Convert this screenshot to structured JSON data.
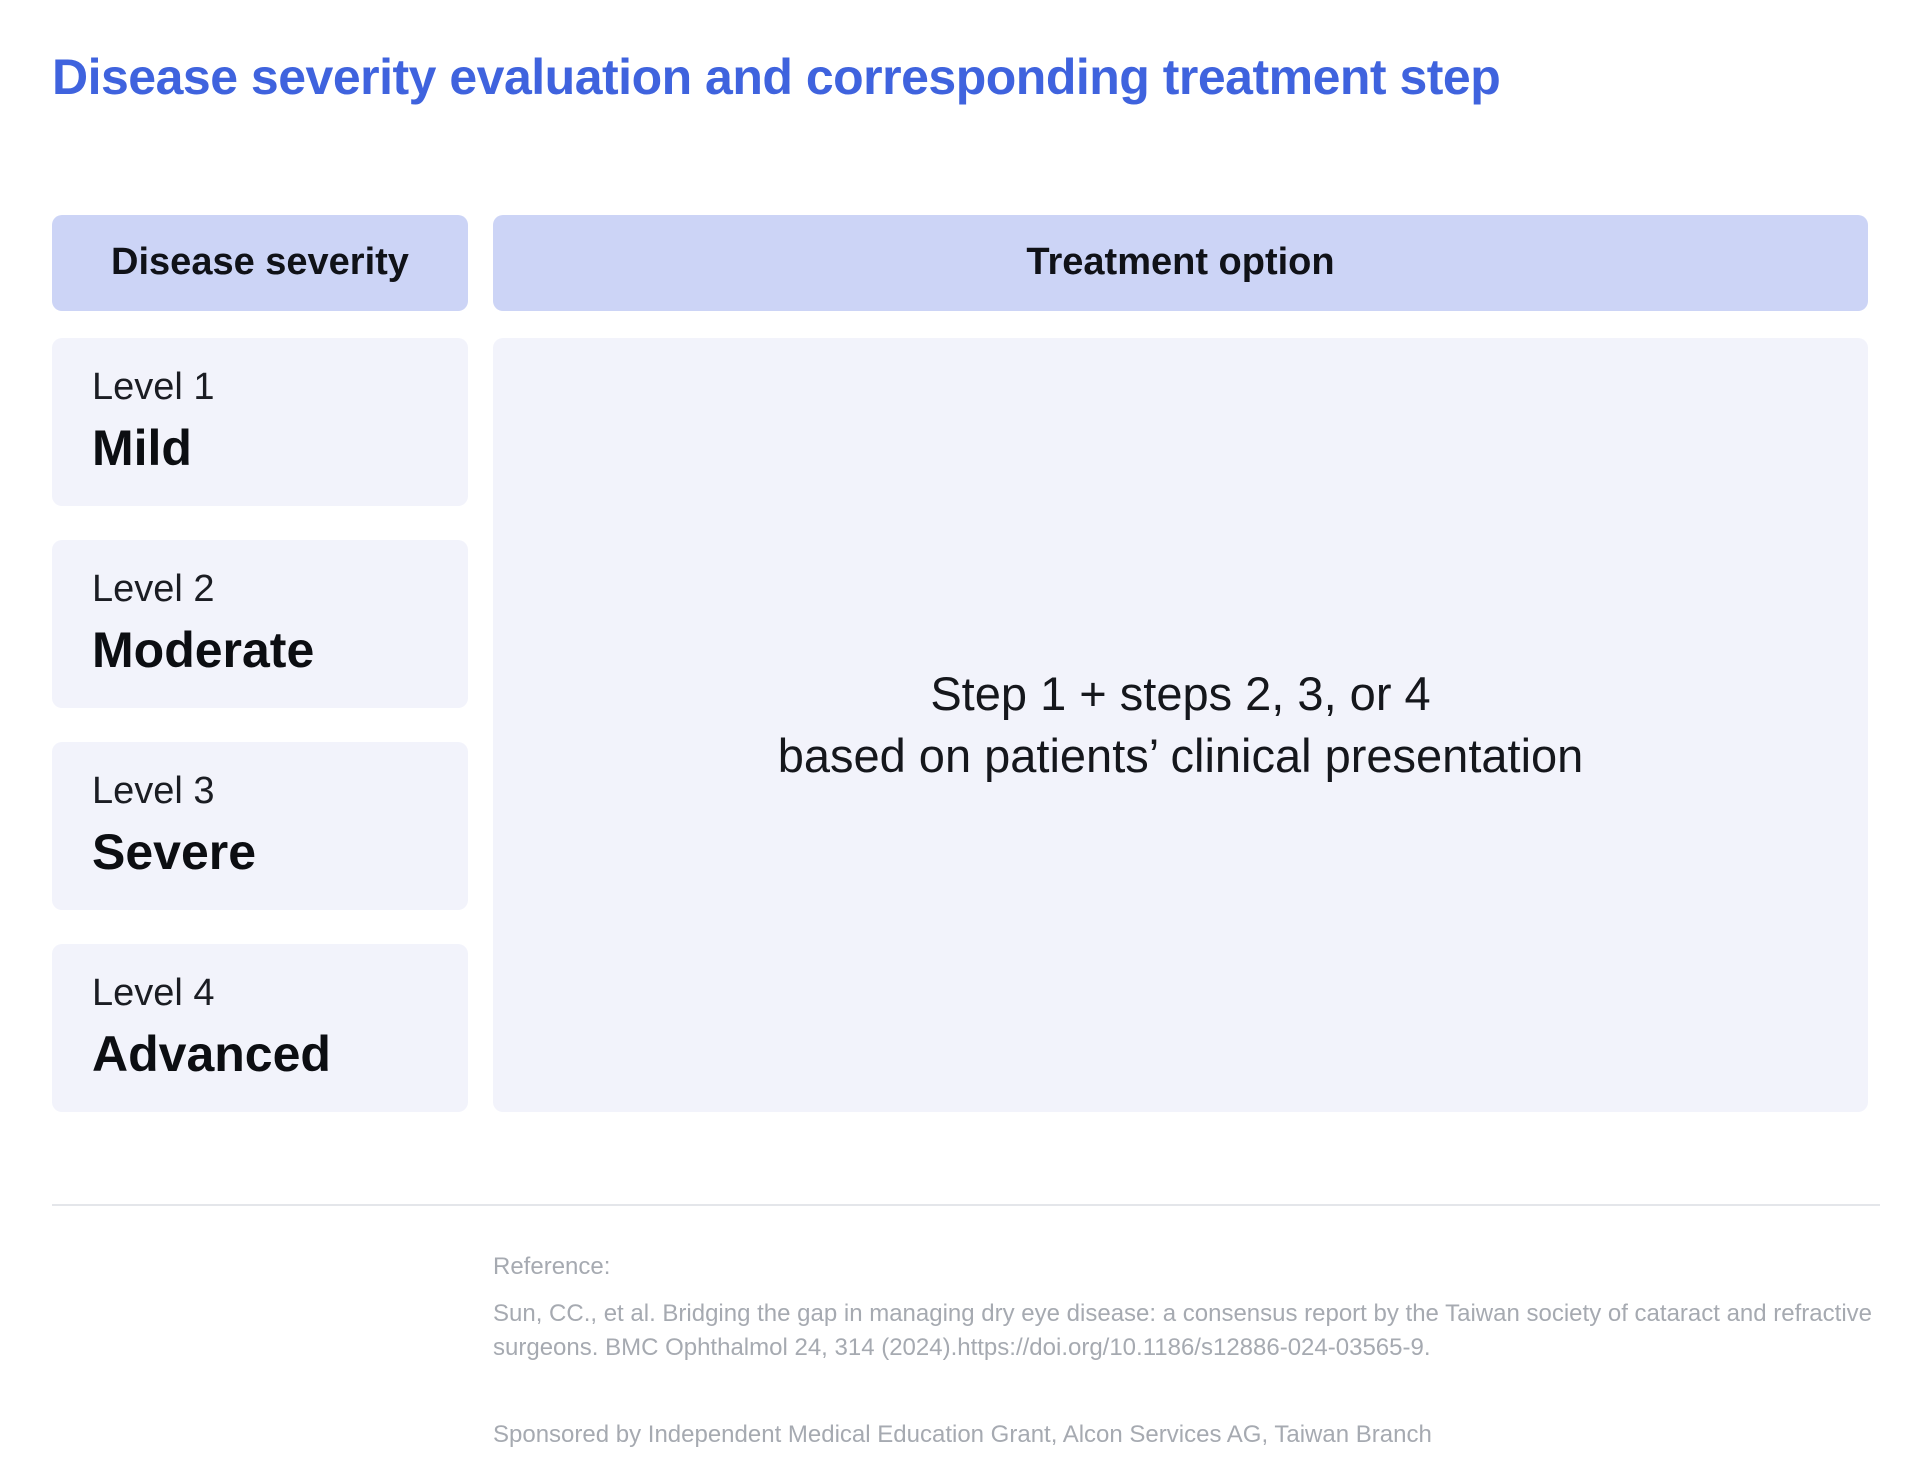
{
  "page": {
    "title": "Disease severity evaluation and corresponding treatment step"
  },
  "table": {
    "headers": {
      "severity": "Disease severity",
      "treatment": "Treatment option"
    },
    "severity_rows": [
      {
        "level": "Level 1",
        "name": "Mild"
      },
      {
        "level": "Level 2",
        "name": "Moderate"
      },
      {
        "level": "Level 3",
        "name": "Severe"
      },
      {
        "level": "Level 4",
        "name": "Advanced"
      }
    ],
    "treatment": {
      "line1": "Step 1 + steps 2, 3, or 4",
      "line2": "based on patients’ clinical presentation"
    }
  },
  "footer": {
    "reference_label": "Reference:",
    "reference_text": "Sun, CC., et al. Bridging the gap in managing dry eye disease: a consensus report by the Taiwan society of cataract and refractive surgeons. BMC Ophthalmol 24, 314 (2024).https://doi.org/10.1186/s12886-024-03565-9.",
    "sponsor_text": "Sponsored by Independent Medical Education Grant, Alcon Services AG, Taiwan Branch"
  },
  "colors": {
    "title_blue": "#3f63de",
    "header_bg": "#ccd4f6",
    "cell_bg": "#f2f3fb"
  }
}
